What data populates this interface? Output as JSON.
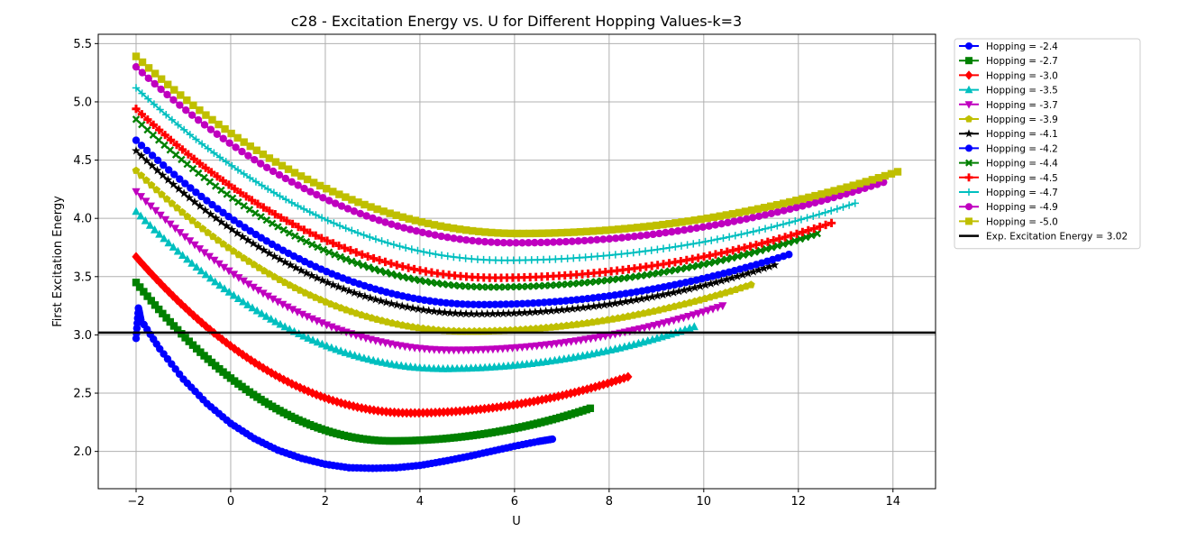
{
  "chart_data": {
    "type": "line",
    "title": "c28 - Excitation Energy vs. U for Different Hopping Values-k=3",
    "xlabel": "U",
    "ylabel": "First Excitation Energy",
    "xlim": [
      -2.8,
      14.9
    ],
    "ylim": [
      1.68,
      5.58
    ],
    "xticks": [
      -2,
      0,
      2,
      4,
      6,
      8,
      10,
      12,
      14
    ],
    "yticks": [
      2.0,
      2.5,
      3.0,
      3.5,
      4.0,
      4.5,
      5.0,
      5.5
    ],
    "grid": true,
    "legend_position": "outside-top-right",
    "reference_line": {
      "label": "Exp. Excitation Energy = 3.02",
      "y": 3.02,
      "color": "#000000"
    },
    "series": [
      {
        "name": "Hopping = -2.4",
        "color": "#0000ff",
        "marker": "circle",
        "x_start": -2.0,
        "x_end": 6.8,
        "points": [
          [
            -2.0,
            2.97
          ],
          [
            -1.95,
            3.23
          ],
          [
            -1.9,
            3.13
          ],
          [
            -1.5,
            2.88
          ],
          [
            -1.0,
            2.62
          ],
          [
            -0.5,
            2.41
          ],
          [
            0.0,
            2.24
          ],
          [
            0.5,
            2.11
          ],
          [
            1.0,
            2.01
          ],
          [
            1.5,
            1.94
          ],
          [
            2.0,
            1.89
          ],
          [
            2.5,
            1.86
          ],
          [
            3.0,
            1.855
          ],
          [
            3.5,
            1.86
          ],
          [
            4.0,
            1.88
          ],
          [
            4.5,
            1.915
          ],
          [
            5.0,
            1.955
          ],
          [
            5.5,
            2.0
          ],
          [
            6.0,
            2.045
          ],
          [
            6.5,
            2.085
          ],
          [
            6.8,
            2.105
          ]
        ]
      },
      {
        "name": "Hopping = -2.7",
        "color": "#008000",
        "marker": "square",
        "x_start": -2.0,
        "x_end": 7.6,
        "x_min": 3.4,
        "y_min": 2.09,
        "y_start": 3.45,
        "y_end": 2.37
      },
      {
        "name": "Hopping = -3.0",
        "color": "#ff0000",
        "marker": "diamond",
        "x_start": -2.0,
        "x_end": 8.4,
        "x_min": 3.8,
        "y_min": 2.33,
        "y_start": 3.67,
        "y_end": 2.64
      },
      {
        "name": "Hopping = -3.5",
        "color": "#00bfbf",
        "marker": "triangle-up",
        "x_start": -2.0,
        "x_end": 9.8,
        "x_min": 4.5,
        "y_min": 2.71,
        "y_start": 4.06,
        "y_end": 3.07
      },
      {
        "name": "Hopping = -3.7",
        "color": "#bf00bf",
        "marker": "triangle-down",
        "x_start": -2.0,
        "x_end": 10.4,
        "x_min": 4.7,
        "y_min": 2.87,
        "y_start": 4.23,
        "y_end": 3.25
      },
      {
        "name": "Hopping = -3.9",
        "color": "#bfbf00",
        "marker": "pentagon",
        "x_start": -2.0,
        "x_end": 11.0,
        "x_min": 5.0,
        "y_min": 3.03,
        "y_start": 4.41,
        "y_end": 3.43
      },
      {
        "name": "Hopping = -4.1",
        "color": "#000000",
        "marker": "star",
        "x_start": -2.0,
        "x_end": 11.5,
        "x_min": 5.2,
        "y_min": 3.18,
        "y_start": 4.58,
        "y_end": 3.6
      },
      {
        "name": "Hopping = -4.2",
        "color": "#0000ff",
        "marker": "circle",
        "x_start": -2.0,
        "x_end": 11.8,
        "x_min": 5.3,
        "y_min": 3.26,
        "y_start": 4.67,
        "y_end": 3.69
      },
      {
        "name": "Hopping = -4.4",
        "color": "#008000",
        "marker": "x-filled",
        "x_start": -2.0,
        "x_end": 12.4,
        "x_min": 5.5,
        "y_min": 3.41,
        "y_start": 4.85,
        "y_end": 3.87
      },
      {
        "name": "Hopping = -4.5",
        "color": "#ff0000",
        "marker": "plus-filled",
        "x_start": -2.0,
        "x_end": 12.7,
        "x_min": 5.6,
        "y_min": 3.49,
        "y_start": 4.94,
        "y_end": 3.96
      },
      {
        "name": "Hopping = -4.7",
        "color": "#00bfbf",
        "marker": "plus",
        "x_start": -2.0,
        "x_end": 13.2,
        "x_min": 5.8,
        "y_min": 3.64,
        "y_start": 5.12,
        "y_end": 4.13
      },
      {
        "name": "Hopping = -4.9",
        "color": "#bf00bf",
        "marker": "circle",
        "x_start": -2.0,
        "x_end": 13.8,
        "x_min": 6.0,
        "y_min": 3.79,
        "y_start": 5.3,
        "y_end": 4.31
      },
      {
        "name": "Hopping = -5.0",
        "color": "#bfbf00",
        "marker": "square",
        "x_start": -2.0,
        "x_end": 14.1,
        "x_min": 6.1,
        "y_min": 3.87,
        "y_start": 5.39,
        "y_end": 4.4
      }
    ]
  }
}
